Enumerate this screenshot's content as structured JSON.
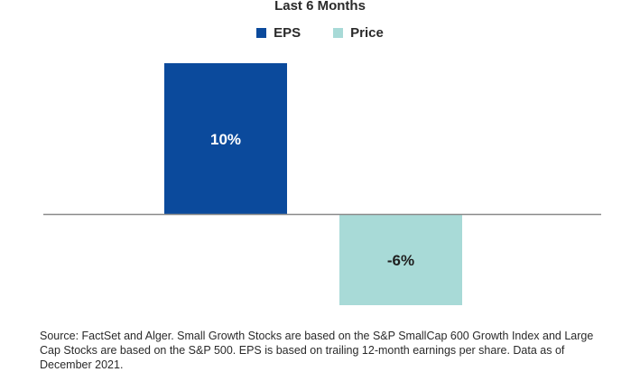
{
  "chart_data": {
    "type": "bar",
    "title": "Last 6 Months",
    "categories": [
      "EPS",
      "Price"
    ],
    "values": [
      10,
      -6
    ],
    "value_labels": [
      "10%",
      "-6%"
    ],
    "colors": [
      "#0b4a9c",
      "#a8dad7"
    ],
    "ylim": [
      -6,
      10
    ],
    "grid": false,
    "legend": {
      "placement": "top-center",
      "entries": [
        "EPS",
        "Price"
      ]
    }
  },
  "footer": {
    "source": "Source: FactSet and Alger. Small Growth Stocks are based on the S&P SmallCap 600 Growth Index and Large Cap Stocks are based on the S&P 500. EPS is based on trailing 12-month earnings per share. Data as of December 2021."
  }
}
